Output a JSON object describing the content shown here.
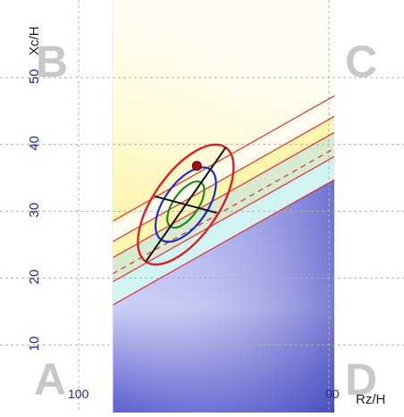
{
  "chart_data": {
    "type": "scatter",
    "xlabel": "Rz/H",
    "ylabel": "Xc/H",
    "x_tick_labels": [
      "100",
      "00"
    ],
    "y_ticks": [
      10,
      20,
      30,
      40,
      50
    ],
    "y_tick_labels": [
      "10",
      "20",
      "30",
      "40",
      "50"
    ],
    "ylim": [
      0,
      60
    ],
    "grid": true,
    "quadrant_labels": [
      "A",
      "B",
      "C",
      "D"
    ],
    "point": {
      "x_fraction": 0.38,
      "y": 36.8
    },
    "ellipse_center": {
      "x_fraction": 0.33,
      "y": 31.0
    },
    "colors": {
      "dark_region": "#4a4fc8",
      "light_region": "#c9ccf4",
      "yellow_band": "#fdf5a6",
      "green_band": "#d8ead0",
      "cyan_band": "#d2f3f4",
      "red": "#e02020",
      "blue": "#1a2bd6",
      "green": "#1a8a1a",
      "tick_text": "#1c2a9e",
      "quadrant_letter": "#c8c8c8"
    }
  }
}
